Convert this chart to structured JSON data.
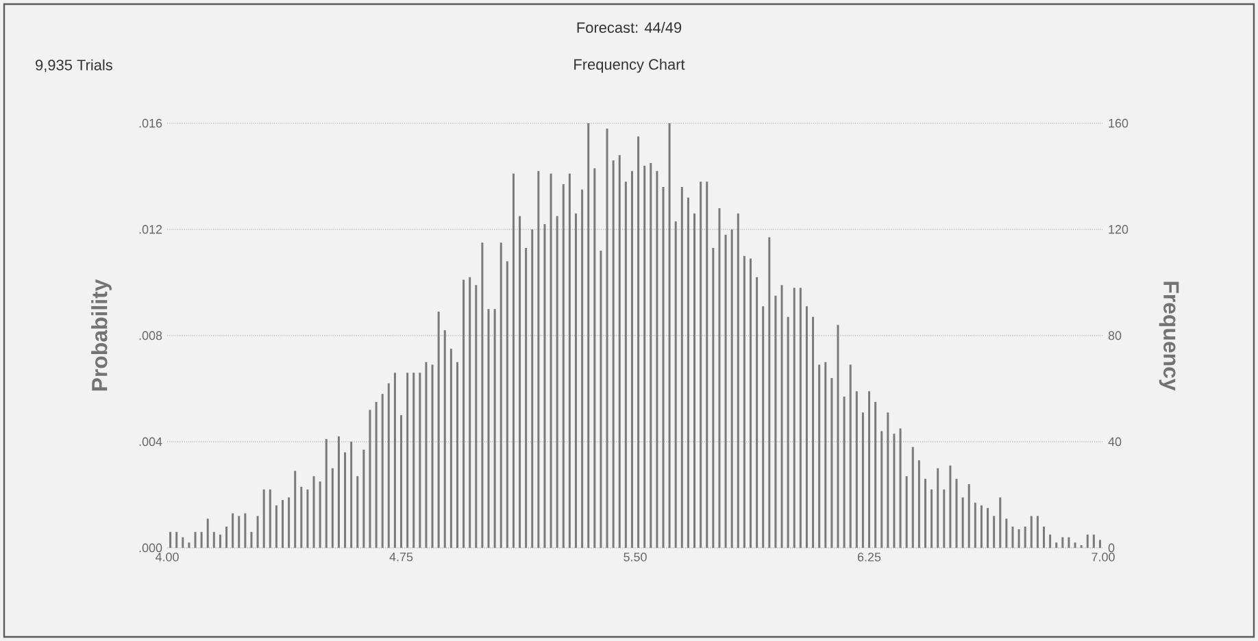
{
  "chart_data": {
    "type": "histogram",
    "title": "Forecast: 44/49",
    "subtitle": "Frequency Chart",
    "annotations": [
      "9,935 Trials"
    ],
    "ylabel": "Probability",
    "y2label": "Frequency",
    "bins": [
      4,
      4.02,
      4.04,
      4.06,
      4.08,
      4.1,
      4.12,
      4.14,
      4.16,
      4.18,
      4.2,
      4.22,
      4.24,
      4.26,
      4.28,
      4.3,
      4.32,
      4.34,
      4.36,
      4.38,
      4.4,
      4.42,
      4.44,
      4.46,
      4.48,
      4.5,
      4.52,
      4.54,
      4.56,
      4.58,
      4.6,
      4.62,
      4.64,
      4.66,
      4.68,
      4.7,
      4.72,
      4.74,
      4.76,
      4.78,
      4.8,
      4.82,
      4.84,
      4.86,
      4.88,
      4.9,
      4.92,
      4.94,
      4.96,
      4.98,
      5,
      5.02,
      5.04,
      5.06,
      5.08,
      5.1,
      5.12,
      5.14,
      5.16,
      5.18,
      5.2,
      5.22,
      5.24,
      5.26,
      5.28,
      5.3,
      5.32,
      5.34,
      5.36,
      5.38,
      5.4,
      5.42,
      5.44,
      5.46,
      5.48,
      5.5,
      5.52,
      5.54,
      5.56,
      5.58,
      5.6,
      5.62,
      5.64,
      5.66,
      5.68,
      5.7,
      5.72,
      5.74,
      5.76,
      5.78,
      5.8,
      5.82,
      5.84,
      5.86,
      5.88,
      5.9,
      5.92,
      5.94,
      5.96,
      5.98,
      6,
      6.02,
      6.04,
      6.06,
      6.08,
      6.1,
      6.12,
      6.14,
      6.16,
      6.18,
      6.2,
      6.22,
      6.24,
      6.26,
      6.28,
      6.3,
      6.32,
      6.34,
      6.36,
      6.38,
      6.4,
      6.42,
      6.44,
      6.46,
      6.48,
      6.5,
      6.52,
      6.54,
      6.56,
      6.58,
      6.6,
      6.62,
      6.64,
      6.66,
      6.68,
      6.7,
      6.72,
      6.74,
      6.76,
      6.78,
      6.8,
      6.82,
      6.84,
      6.86,
      6.88,
      6.9,
      6.92,
      6.94,
      6.96,
      6.98,
      7
    ],
    "series": [
      {
        "color": "#7a7a7a",
        "axis": "y2",
        "values": [
          6,
          6,
          4,
          2,
          6,
          6,
          11,
          6,
          5,
          8,
          13,
          12,
          13,
          6,
          12,
          22,
          22,
          16,
          18,
          19,
          29,
          23,
          22,
          27,
          25,
          41,
          30,
          42,
          36,
          40,
          27,
          37,
          52,
          55,
          58,
          62,
          66,
          50,
          66,
          66,
          66,
          70,
          69,
          89,
          82,
          75,
          70,
          101,
          102,
          99,
          115,
          90,
          90,
          115,
          108,
          141,
          125,
          113,
          120,
          142,
          122,
          141,
          125,
          137,
          141,
          126,
          135,
          160,
          143,
          112,
          158,
          146,
          148,
          138,
          142,
          155,
          144,
          145,
          142,
          136,
          160,
          123,
          136,
          132,
          126,
          138,
          138,
          113,
          128,
          118,
          120,
          126,
          110,
          109,
          102,
          91,
          117,
          95,
          99,
          87,
          98,
          98,
          91,
          87,
          69,
          70,
          64,
          84,
          57,
          69,
          59,
          51,
          59,
          55,
          44,
          51,
          43,
          45,
          27,
          38,
          33,
          26,
          22,
          30,
          22,
          31,
          26,
          19,
          24,
          17,
          16,
          15,
          12,
          19,
          11,
          8,
          7,
          8,
          12,
          12,
          8,
          5,
          2,
          4,
          4,
          2,
          1,
          5,
          5,
          3
        ]
      }
    ],
    "xlim": [
      4,
      7
    ],
    "xticks": [
      {
        "value": 4,
        "label": "4.00"
      },
      {
        "value": 4.75,
        "label": "4.75"
      },
      {
        "value": 5.5,
        "label": "5.50"
      },
      {
        "value": 6.25,
        "label": "6.25"
      },
      {
        "value": 7,
        "label": "7.00"
      }
    ],
    "ylim": [
      0,
      0.016
    ],
    "yticks": [
      {
        "value": 0,
        "label": ".000"
      },
      {
        "value": 0.004,
        "label": ".004"
      },
      {
        "value": 0.008,
        "label": ".008"
      },
      {
        "value": 0.012,
        "label": ".012"
      },
      {
        "value": 0.016,
        "label": ".016"
      }
    ],
    "y2lim": [
      0,
      160
    ],
    "y2ticks": [
      0,
      40,
      80,
      120,
      160
    ],
    "grid": "y"
  }
}
